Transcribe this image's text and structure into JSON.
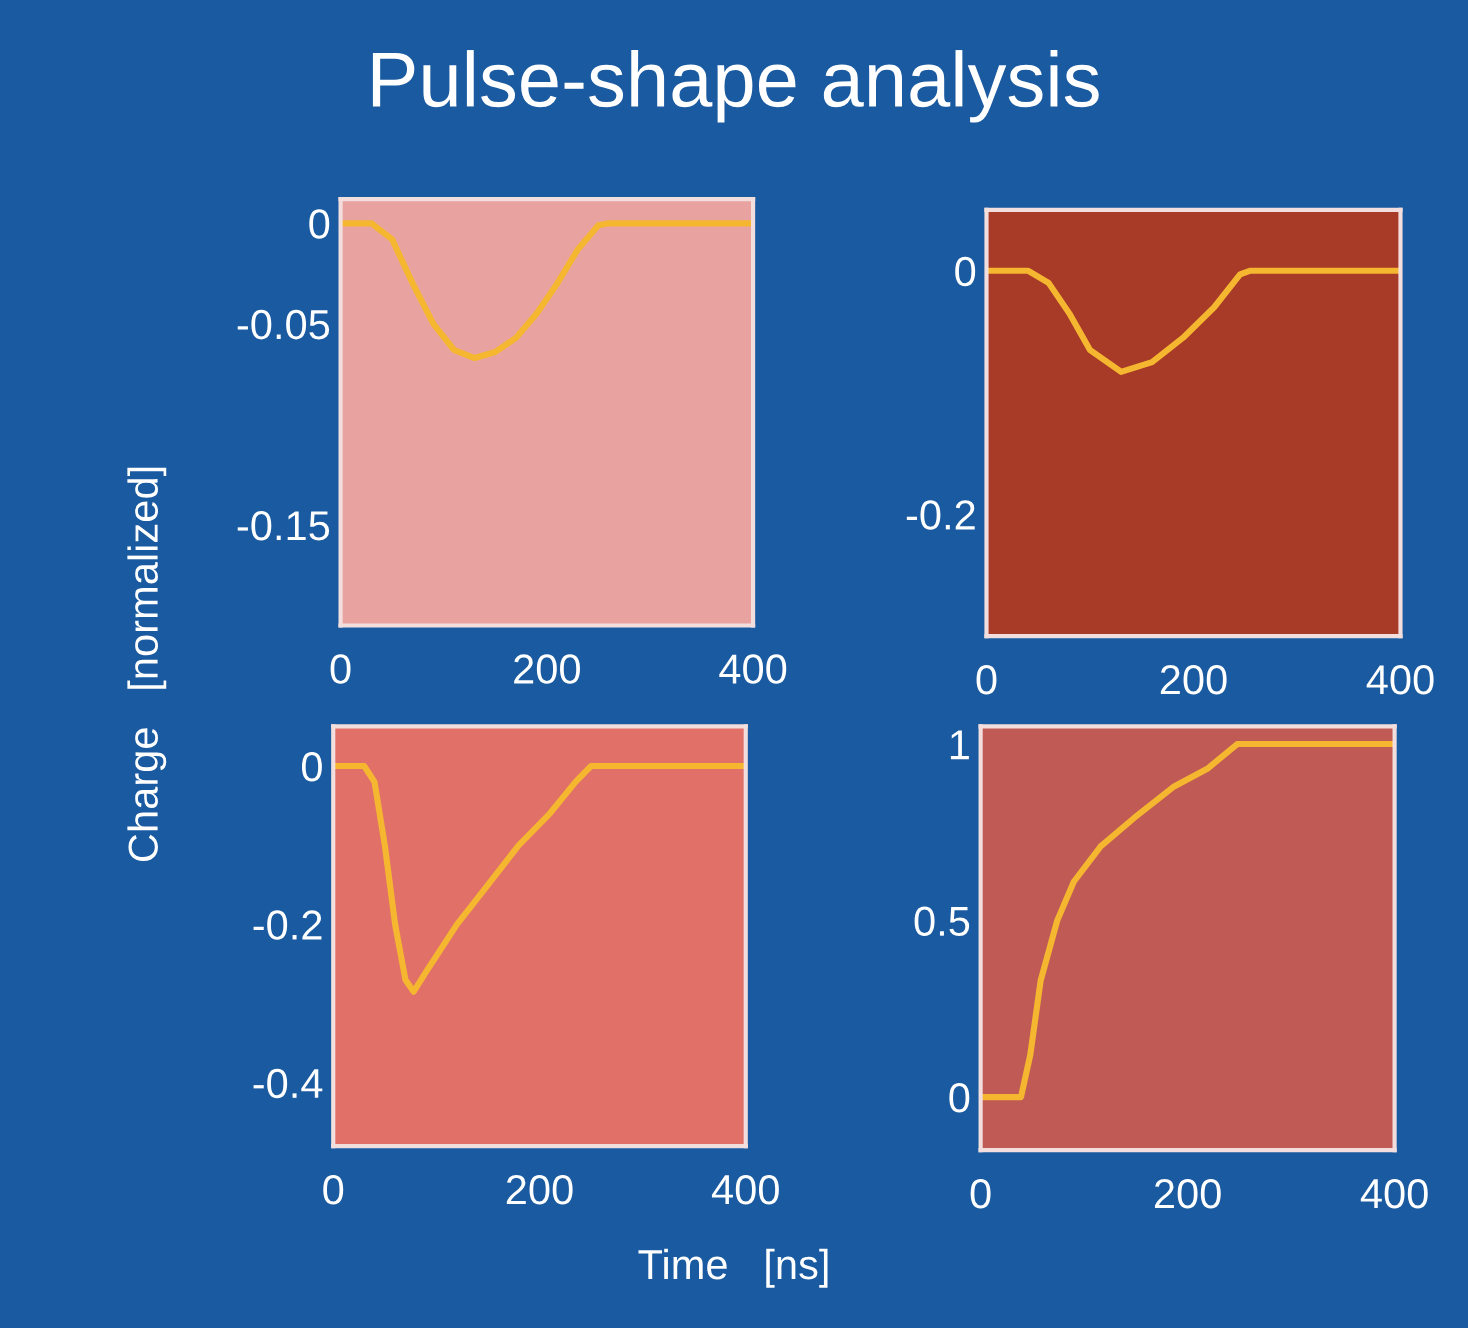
{
  "chart_data": [
    {
      "type": "line",
      "title": "Pulse-shape analysis",
      "x": [
        0,
        30,
        50,
        70,
        90,
        110,
        130,
        150,
        170,
        190,
        210,
        230,
        250,
        260,
        400
      ],
      "series": [
        {
          "color": "#f5b730",
          "values": [
            0,
            0,
            -0.008,
            -0.03,
            -0.05,
            -0.063,
            -0.067,
            -0.064,
            -0.057,
            -0.045,
            -0.03,
            -0.013,
            -0.001,
            0,
            0
          ]
        }
      ],
      "xlim": [
        0,
        400
      ],
      "xticks": [
        0,
        200,
        400
      ],
      "ylim": [
        -0.2,
        0.012
      ],
      "yticks": [
        0,
        -0.05,
        -0.15
      ],
      "grid": false,
      "legend": false
    },
    {
      "type": "line",
      "x": [
        0,
        40,
        60,
        80,
        100,
        130,
        160,
        190,
        220,
        245,
        255,
        400
      ],
      "series": [
        {
          "color": "#f5b730",
          "values": [
            0,
            0,
            -0.01,
            -0.035,
            -0.065,
            -0.083,
            -0.075,
            -0.055,
            -0.03,
            -0.003,
            0,
            0
          ]
        }
      ],
      "xlim": [
        0,
        400
      ],
      "xticks": [
        0,
        200,
        400
      ],
      "ylim": [
        -0.3,
        0.05
      ],
      "yticks": [
        0,
        -0.2
      ],
      "grid": false,
      "legend": false
    },
    {
      "type": "line",
      "ylabel": "Charge   [normalized]",
      "x": [
        0,
        30,
        40,
        50,
        60,
        70,
        78,
        90,
        120,
        150,
        180,
        210,
        235,
        250,
        400
      ],
      "series": [
        {
          "color": "#f5b730",
          "values": [
            0,
            0,
            -0.02,
            -0.1,
            -0.2,
            -0.27,
            -0.285,
            -0.26,
            -0.2,
            -0.15,
            -0.1,
            -0.06,
            -0.02,
            0,
            0
          ]
        }
      ],
      "xlim": [
        0,
        400
      ],
      "xticks": [
        0,
        200,
        400
      ],
      "ylim": [
        -0.48,
        0.05
      ],
      "yticks": [
        0,
        -0.2,
        -0.4
      ],
      "grid": false,
      "legend": false
    },
    {
      "type": "line",
      "xlabel": "Time   [ns]",
      "x": [
        0,
        39,
        48,
        58,
        74,
        90,
        116,
        148,
        187,
        219,
        248,
        400
      ],
      "series": [
        {
          "color": "#f5b730",
          "values": [
            0,
            0,
            0.12,
            0.33,
            0.5,
            0.61,
            0.71,
            0.79,
            0.88,
            0.93,
            1,
            1
          ]
        }
      ],
      "xlim": [
        0,
        400
      ],
      "xticks": [
        0,
        200,
        400
      ],
      "ylim": [
        -0.15,
        1.05
      ],
      "yticks": [
        0,
        0.5,
        1
      ],
      "grid": false,
      "legend": false
    }
  ]
}
